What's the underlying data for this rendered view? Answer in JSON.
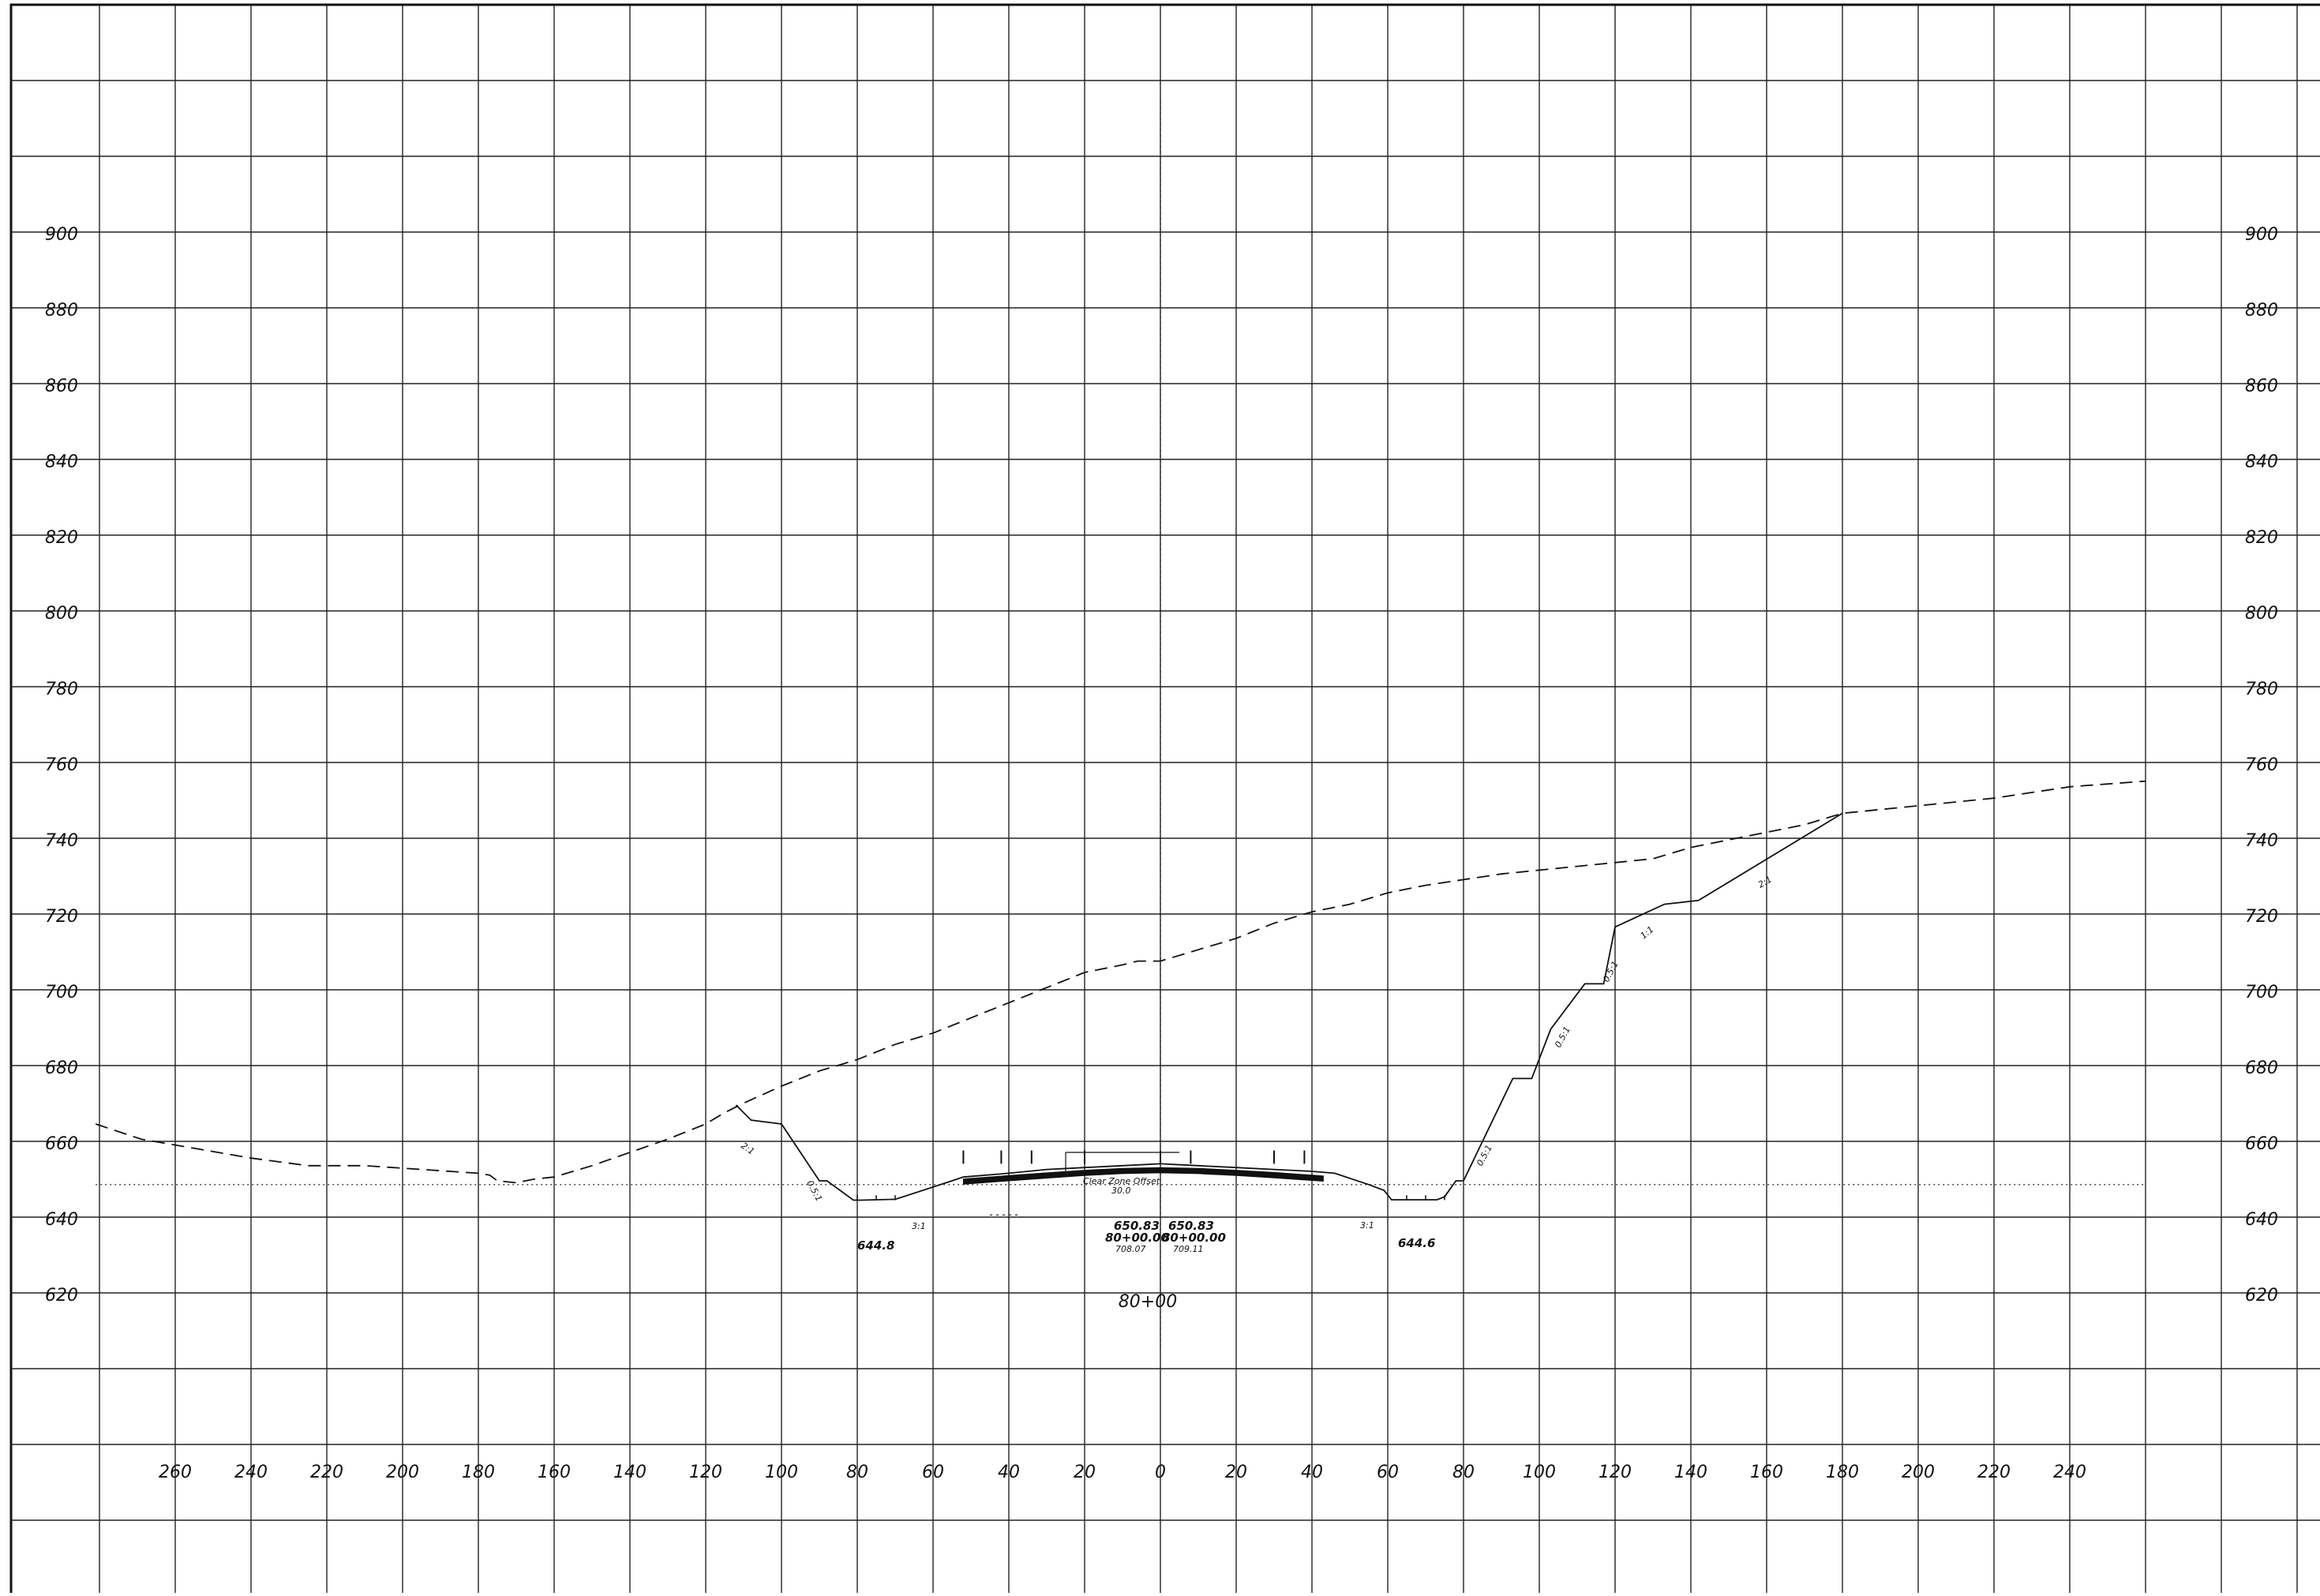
{
  "drawing": {
    "title": "",
    "station_label": "80+00",
    "elevation_labels": [
      "900",
      "880",
      "860",
      "840",
      "820",
      "800",
      "780",
      "760",
      "740",
      "720",
      "700",
      "680",
      "660",
      "640",
      "620"
    ],
    "elevation_values": [
      900,
      880,
      860,
      840,
      820,
      800,
      780,
      760,
      740,
      720,
      700,
      680,
      660,
      640,
      620
    ],
    "offset_labels": [
      "260",
      "240",
      "220",
      "200",
      "180",
      "160",
      "140",
      "120",
      "100",
      "80",
      "60",
      "40",
      "20",
      "0",
      "20",
      "40",
      "60",
      "80",
      "100",
      "120",
      "140",
      "160",
      "180",
      "200",
      "220",
      "240"
    ],
    "offset_values": [
      -260,
      -240,
      -220,
      -200,
      -180,
      -160,
      -140,
      -120,
      -100,
      -80,
      -60,
      -40,
      -20,
      0,
      20,
      40,
      60,
      80,
      100,
      120,
      140,
      160,
      180,
      200,
      220,
      240
    ],
    "annotations": {
      "clear_zone_label": "Clear Zone Offset",
      "clear_zone_value": "30.0",
      "grade_left": "650.83",
      "grade_right": "650.83",
      "station_left": "80+00.00",
      "station_right": "80+00.00",
      "existing_left": "708.07",
      "existing_right": "709.11",
      "ditch_left": "644.8",
      "ditch_right": "644.6",
      "slope_3to1": "3:1",
      "slope_half_to_1": "0.5:1",
      "slope_1to1": "1:1",
      "slope_2to1": "2:1"
    }
  },
  "chart_data": {
    "type": "line",
    "title": "",
    "xlabel": "",
    "ylabel": "",
    "xlim": [
      -280,
      260
    ],
    "ylim": [
      600,
      940
    ],
    "grid": true,
    "series": [
      {
        "style": "dashed",
        "x": [
          -281,
          -269,
          -240,
          -225,
          -210,
          -195,
          -180,
          -177,
          -175,
          -170,
          -165,
          -160,
          -150,
          -140,
          -130,
          -120,
          -115,
          -110,
          -100,
          -90,
          -80,
          -70,
          -60,
          -50,
          -40,
          -30,
          -20,
          -10,
          -6,
          -3,
          0,
          10,
          20,
          30,
          40,
          50,
          60,
          70,
          80,
          90,
          100,
          110,
          120,
          130,
          140,
          150,
          160,
          170,
          180,
          190,
          200,
          210,
          220,
          240,
          260
        ],
        "y": [
          665,
          661,
          656,
          654,
          654,
          653,
          652,
          651.5,
          650,
          649.5,
          650.5,
          651,
          654,
          657.5,
          661,
          665,
          668,
          670.5,
          675,
          679,
          682,
          686,
          689,
          693,
          697,
          701,
          705,
          707,
          708,
          708,
          708,
          711,
          714,
          718,
          721,
          723,
          726,
          728,
          729.5,
          731,
          732,
          733,
          734,
          735,
          738,
          740,
          742,
          744,
          747,
          748,
          749,
          750,
          751,
          754,
          755.5
        ]
      },
      {
        "style": "solid",
        "x": [
          -112,
          -108,
          -100,
          -90,
          -88,
          -81,
          -79,
          -71,
          -70,
          -55,
          -52,
          -40,
          -30,
          -20,
          -10,
          0,
          10,
          20,
          30,
          40,
          46,
          55,
          59,
          61,
          73,
          75,
          78,
          80,
          93,
          98,
          103,
          112,
          117,
          120,
          133,
          142,
          180
        ],
        "y": [
          670,
          666,
          665,
          650,
          650,
          644.9,
          644.9,
          645.1,
          645.1,
          650,
          651,
          652,
          653,
          653.5,
          654,
          654.5,
          654,
          653.5,
          653,
          652.5,
          652,
          649,
          647.5,
          645,
          645,
          645.8,
          650,
          650,
          677,
          677,
          690,
          702,
          702,
          717,
          723,
          724,
          747
        ]
      },
      {
        "style": "dotted",
        "x": [
          -281,
          260
        ],
        "y": [
          649,
          649
        ]
      }
    ]
  }
}
